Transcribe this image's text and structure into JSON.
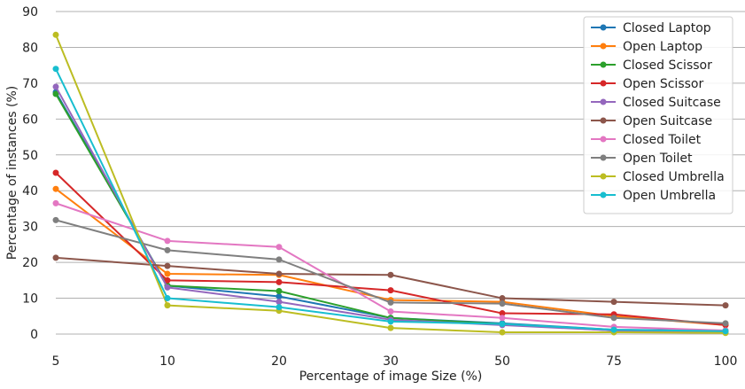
{
  "chart_data": {
    "type": "line",
    "title": "",
    "xlabel": "Percentage of image Size (%)",
    "ylabel": "Percentage of instances (%)",
    "x": [
      "5",
      "10",
      "20",
      "30",
      "50",
      "75",
      "100"
    ],
    "ylim": [
      0,
      90
    ],
    "yticks": [
      0,
      10,
      20,
      30,
      40,
      50,
      60,
      70,
      80,
      90
    ],
    "grid": "horizontal",
    "legend_position": "top-right",
    "series": [
      {
        "name": "Closed Laptop",
        "color": "#1f77b4",
        "values": [
          67.5,
          13.5,
          10.5,
          4.5,
          3.0,
          1.2,
          1.0
        ]
      },
      {
        "name": "Open Laptop",
        "color": "#ff7f0e",
        "values": [
          40.5,
          16.8,
          16.5,
          9.5,
          9.0,
          5.0,
          2.5
        ]
      },
      {
        "name": "Closed Scissor",
        "color": "#2ca02c",
        "values": [
          67.0,
          13.5,
          12.0,
          4.5,
          2.8,
          1.0,
          0.5
        ]
      },
      {
        "name": "Open Scissor",
        "color": "#d62728",
        "values": [
          45.0,
          15.0,
          14.5,
          12.2,
          5.8,
          5.5,
          2.5
        ]
      },
      {
        "name": "Closed Suitcase",
        "color": "#9467bd",
        "values": [
          69.0,
          13.0,
          9.0,
          4.0,
          2.5,
          1.0,
          0.5
        ]
      },
      {
        "name": "Open Suitcase",
        "color": "#8c564b",
        "values": [
          21.3,
          19.0,
          16.8,
          16.5,
          10.0,
          9.0,
          8.0
        ]
      },
      {
        "name": "Closed Toilet",
        "color": "#e377c2",
        "values": [
          36.5,
          26.0,
          24.3,
          6.3,
          4.5,
          2.0,
          1.0
        ]
      },
      {
        "name": "Open Toilet",
        "color": "#7f7f7f",
        "values": [
          31.8,
          23.4,
          20.8,
          8.8,
          8.5,
          4.5,
          3.0
        ]
      },
      {
        "name": "Closed Umbrella",
        "color": "#bcbd22",
        "values": [
          83.5,
          8.0,
          6.5,
          1.7,
          0.5,
          0.5,
          0.3
        ]
      },
      {
        "name": "Open Umbrella",
        "color": "#17becf",
        "values": [
          74.0,
          10.0,
          7.5,
          3.5,
          2.8,
          1.2,
          0.8
        ]
      }
    ]
  }
}
